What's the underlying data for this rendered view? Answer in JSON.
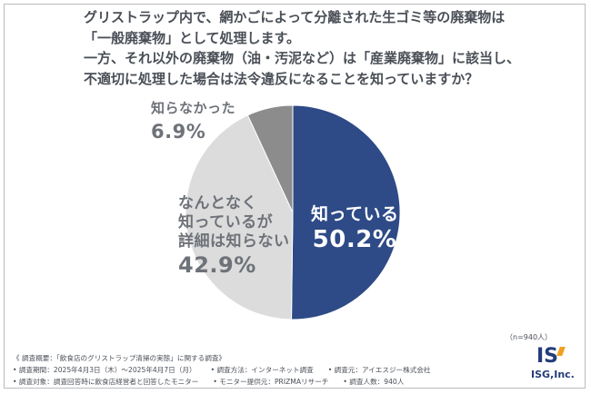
{
  "question": {
    "line1": "グリストラップ内で、網かごによって分離された生ゴミ等の廃棄物は",
    "line2": "「一般廃棄物」として処理します。",
    "line3": "一方、それ以外の廃棄物（油・汚泥など）は「産業廃棄物」に該当し、",
    "line4": "不適切に処理した場合は法令違反になることを知っていますか？"
  },
  "chart_data": {
    "type": "pie",
    "start": "12 o'clock",
    "direction": "clockwise",
    "slices": [
      {
        "label": "知っている",
        "lines": [
          "知っている"
        ],
        "value": 50.2,
        "display": "50.2%",
        "color": "#2e4a87"
      },
      {
        "label": "なんとなく知っているが詳細は知らない",
        "lines": [
          "なんとなく",
          "知っているが",
          "詳細は知らない"
        ],
        "value": 42.9,
        "display": "42.9%",
        "color": "#dcdcdc"
      },
      {
        "label": "知らなかった",
        "lines": [
          "知らなかった"
        ],
        "value": 6.9,
        "display": "6.9%",
        "color": "#8c8c8c"
      }
    ]
  },
  "sample": "（n=940人）",
  "footer": {
    "line1": "《 調査概要：「飲食店のグリストラップ清掃の実態」に関する調査》",
    "line2": [
      "• 調査期間：2025年4月3日（木）～2025年4月7日（月）",
      "• 調査方法：インターネット調査",
      "• 調査元：アイエスジー株式会社"
    ],
    "line3": [
      "• 調査対象：調査回答時に飲食店経営者と回答したモニター",
      "• モニター提供元：PRIZMAリサーチ",
      "• 調査人数：940人"
    ]
  },
  "logo": {
    "mark": "IS",
    "text": "ISG,Inc.",
    "accent": "#f0a020",
    "brand": "#243d7a"
  }
}
